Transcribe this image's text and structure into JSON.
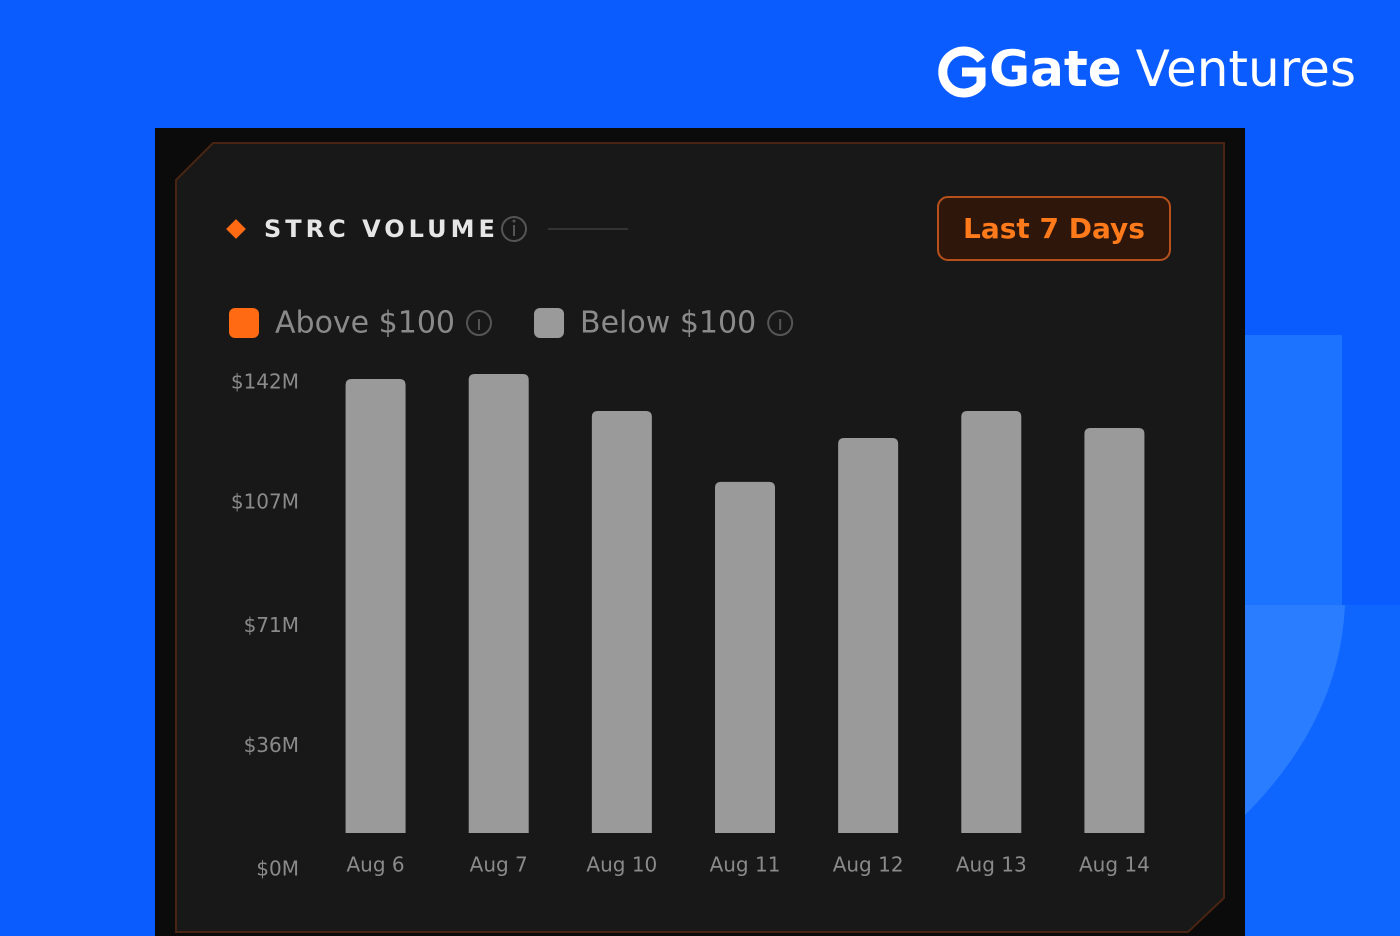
{
  "brand": {
    "name": "Gate",
    "suffix": "Ventures"
  },
  "chart_data": {
    "type": "bar",
    "stacked": true,
    "title": "STRC VOLUME",
    "range_button": "Last 7 Days",
    "categories": [
      "Aug 6",
      "Aug 7",
      "Aug 10",
      "Aug 11",
      "Aug 12",
      "Aug 13",
      "Aug 14"
    ],
    "series": [
      {
        "name": "Below $100",
        "color": "#9a9a9a",
        "values": [
          136.3,
          137.8,
          126.7,
          105.4,
          118.6,
          126.7,
          121.6
        ]
      },
      {
        "name": "Above $100",
        "color": "#ff6a13",
        "values": [
          0,
          0,
          0,
          0,
          0,
          0,
          0
        ]
      }
    ],
    "legend_order": [
      1,
      0
    ],
    "ylim": [
      0,
      142
    ],
    "yticks": [
      {
        "value": 0,
        "label": "$0M"
      },
      {
        "value": 36,
        "label": "$36M"
      },
      {
        "value": 71,
        "label": "$71M"
      },
      {
        "value": 107,
        "label": "$107M"
      },
      {
        "value": 142,
        "label": "$142M"
      }
    ],
    "grid": false
  }
}
